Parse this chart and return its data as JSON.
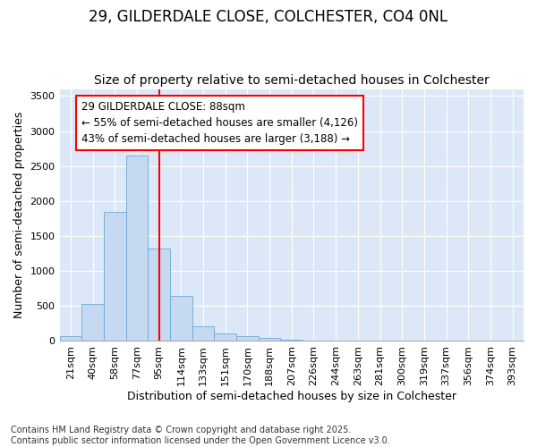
{
  "title": "29, GILDERDALE CLOSE, COLCHESTER, CO4 0NL",
  "subtitle": "Size of property relative to semi-detached houses in Colchester",
  "xlabel": "Distribution of semi-detached houses by size in Colchester",
  "ylabel": "Number of semi-detached properties",
  "categories": [
    "21sqm",
    "40sqm",
    "58sqm",
    "77sqm",
    "95sqm",
    "114sqm",
    "133sqm",
    "151sqm",
    "170sqm",
    "188sqm",
    "207sqm",
    "226sqm",
    "244sqm",
    "263sqm",
    "281sqm",
    "300sqm",
    "319sqm",
    "337sqm",
    "356sqm",
    "374sqm",
    "393sqm"
  ],
  "values": [
    75,
    530,
    1850,
    2650,
    1320,
    640,
    215,
    105,
    65,
    40,
    15,
    5,
    3,
    1,
    0,
    0,
    0,
    0,
    0,
    0,
    0
  ],
  "bar_color": "#c5d9f0",
  "bar_edge_color": "#6fa8d8",
  "annotation_line1": "29 GILDERDALE CLOSE: 88sqm",
  "annotation_line2": "← 55% of semi-detached houses are smaller (4,126)",
  "annotation_line3": "43% of semi-detached houses are larger (3,188) →",
  "ylim": [
    0,
    3600
  ],
  "yticks": [
    0,
    500,
    1000,
    1500,
    2000,
    2500,
    3000,
    3500
  ],
  "footer": "Contains HM Land Registry data © Crown copyright and database right 2025.\nContains public sector information licensed under the Open Government Licence v3.0.",
  "bg_color": "#ffffff",
  "plot_bg_color": "#dce8f8",
  "title_fontsize": 12,
  "subtitle_fontsize": 10,
  "axis_label_fontsize": 9,
  "tick_fontsize": 8,
  "annotation_fontsize": 8.5,
  "footer_fontsize": 7,
  "property_line_xindex": 4
}
